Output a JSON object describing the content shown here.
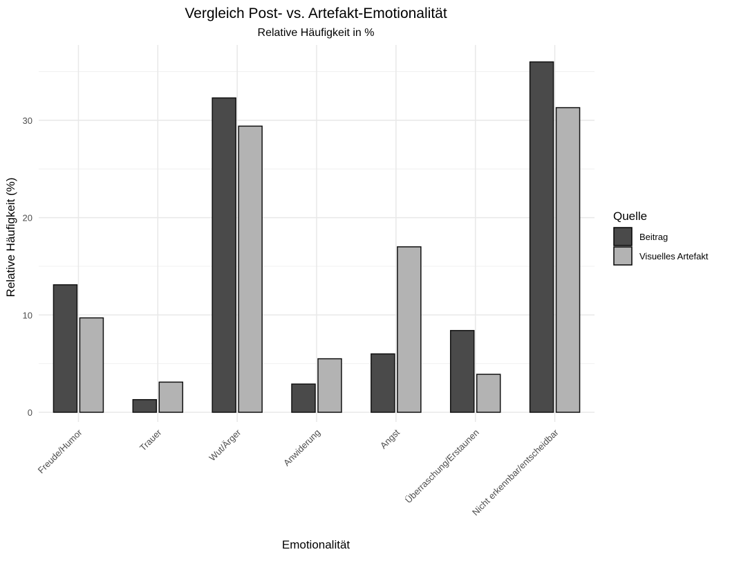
{
  "chart_data": {
    "type": "bar",
    "title": "Vergleich Post- vs. Artefakt-Emotionalität",
    "subtitle": "Relative Häufigkeit in %",
    "xlabel": "Emotionalität",
    "ylabel": "Relative Häufigkeit (%)",
    "ylim": [
      0,
      37.5
    ],
    "yticks": [
      0,
      10,
      20,
      30
    ],
    "grid": true,
    "legend_title": "Quelle",
    "legend_position": "right",
    "categories": [
      "Freude/Humor",
      "Trauer",
      "Wut/Ärger",
      "Anwiderung",
      "Angst",
      "Überraschung/Erstaunen",
      "Nicht erkennbar/entscheidbar"
    ],
    "series": [
      {
        "name": "Beitrag",
        "color": "#4a4a4a",
        "values": [
          13.1,
          1.3,
          32.3,
          2.9,
          6.0,
          8.4,
          36.0
        ]
      },
      {
        "name": "Visuelles Artefakt",
        "color": "#b3b3b3",
        "values": [
          9.7,
          3.1,
          29.4,
          5.5,
          17.0,
          3.9,
          31.3
        ]
      }
    ]
  }
}
